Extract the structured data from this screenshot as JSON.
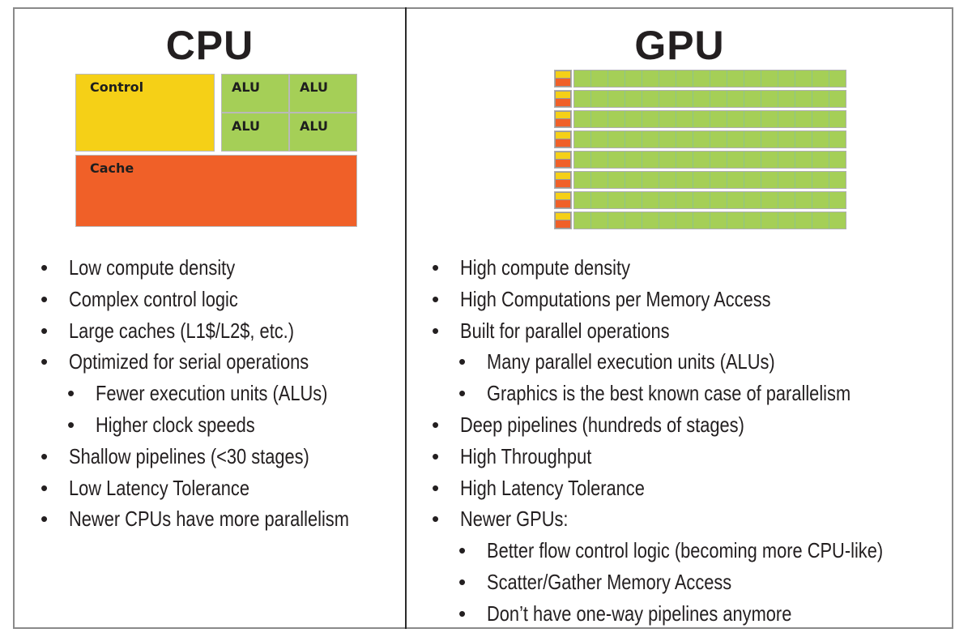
{
  "cpu": {
    "title": "CPU",
    "diagram": {
      "control_label": "Control",
      "alu_labels": [
        "ALU",
        "ALU",
        "ALU",
        "ALU"
      ],
      "cache_label": "Cache",
      "colors": {
        "control": "#f5d017",
        "alu": "#a5cf57",
        "cache": "#f06028"
      }
    },
    "points": [
      {
        "level": 1,
        "text": "Low compute density"
      },
      {
        "level": 1,
        "text": "Complex control logic"
      },
      {
        "level": 1,
        "text": "Large caches (L1$/L2$, etc.)"
      },
      {
        "level": 1,
        "text": "Optimized for serial operations"
      },
      {
        "level": 2,
        "text": "Fewer execution units (ALUs)"
      },
      {
        "level": 2,
        "text": "Higher clock speeds"
      },
      {
        "level": 1,
        "text": "Shallow pipelines (<30 stages)"
      },
      {
        "level": 1,
        "text": "Low Latency Tolerance"
      },
      {
        "level": 1,
        "text": "Newer CPUs have more parallelism"
      }
    ]
  },
  "gpu": {
    "title": "GPU",
    "diagram": {
      "rows": 8,
      "alus_per_row": 16,
      "colors": {
        "control": "#f5d017",
        "alu": "#a5cf57",
        "cache": "#f06028"
      }
    },
    "points": [
      {
        "level": 1,
        "text": "High compute density"
      },
      {
        "level": 1,
        "text": "High Computations per Memory Access"
      },
      {
        "level": 1,
        "text": "Built for parallel operations"
      },
      {
        "level": 2,
        "text": "Many parallel execution units (ALUs)"
      },
      {
        "level": 2,
        "text": "Graphics is the best known case of parallelism"
      },
      {
        "level": 1,
        "text": "Deep pipelines (hundreds of stages)"
      },
      {
        "level": 1,
        "text": "High Throughput"
      },
      {
        "level": 1,
        "text": "High Latency Tolerance"
      },
      {
        "level": 1,
        "text": "Newer GPUs:"
      },
      {
        "level": 2,
        "text": "Better flow control logic (becoming more CPU-like)"
      },
      {
        "level": 2,
        "text": "Scatter/Gather Memory Access"
      },
      {
        "level": 2,
        "text": "Don’t have one-way pipelines anymore"
      }
    ]
  }
}
